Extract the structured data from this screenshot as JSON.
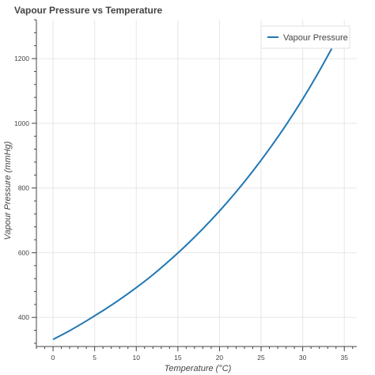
{
  "chart_data": {
    "type": "line",
    "title": "Vapour Pressure vs Temperature",
    "xlabel": "Temperature (°C)",
    "ylabel": "Vapour Pressure (mmHg)",
    "xlim": [
      -2.0,
      36.5
    ],
    "ylim": [
      310,
      1320
    ],
    "xticks": [
      0,
      5,
      10,
      15,
      20,
      25,
      30,
      35
    ],
    "xtick_labels": [
      "0",
      "5",
      "10",
      "15",
      "20",
      "25",
      "30",
      "35"
    ],
    "yticks": [
      400,
      600,
      800,
      1000,
      1200
    ],
    "ytick_labels": [
      "400",
      "600",
      "800",
      "1000",
      "1200"
    ],
    "grid": true,
    "legend_placement": "top-right",
    "series": [
      {
        "name": "Vapour Pressure",
        "color": "#1f77b4",
        "x": [
          0,
          2,
          4,
          6,
          8,
          10,
          12,
          14,
          16,
          18,
          20,
          22,
          24,
          26,
          28,
          30,
          32,
          33.8
        ],
        "y": [
          332,
          359,
          389,
          421,
          455,
          492,
          532,
          576,
          623,
          674,
          729,
          788,
          852,
          921,
          995,
          1075,
          1162,
          1246
        ]
      }
    ]
  }
}
